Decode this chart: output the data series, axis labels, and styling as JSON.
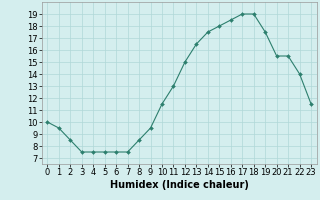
{
  "x": [
    0,
    1,
    2,
    3,
    4,
    5,
    6,
    7,
    8,
    9,
    10,
    11,
    12,
    13,
    14,
    15,
    16,
    17,
    18,
    19,
    20,
    21,
    22,
    23
  ],
  "y": [
    10,
    9.5,
    8.5,
    7.5,
    7.5,
    7.5,
    7.5,
    7.5,
    8.5,
    9.5,
    11.5,
    13,
    15,
    16.5,
    17.5,
    18,
    18.5,
    19,
    19,
    17.5,
    15.5,
    15.5,
    14,
    11.5
  ],
  "line_color": "#2d7f6e",
  "marker_color": "#2d7f6e",
  "bg_color": "#d4eeee",
  "grid_color": "#b0d8d8",
  "xlabel": "Humidex (Indice chaleur)",
  "yticks": [
    7,
    8,
    9,
    10,
    11,
    12,
    13,
    14,
    15,
    16,
    17,
    18,
    19
  ],
  "xticks": [
    0,
    1,
    2,
    3,
    4,
    5,
    6,
    7,
    8,
    9,
    10,
    11,
    12,
    13,
    14,
    15,
    16,
    17,
    18,
    19,
    20,
    21,
    22,
    23
  ],
  "ylim": [
    6.5,
    20.0
  ],
  "xlim": [
    -0.5,
    23.5
  ],
  "tick_fontsize": 6,
  "label_fontsize": 7
}
